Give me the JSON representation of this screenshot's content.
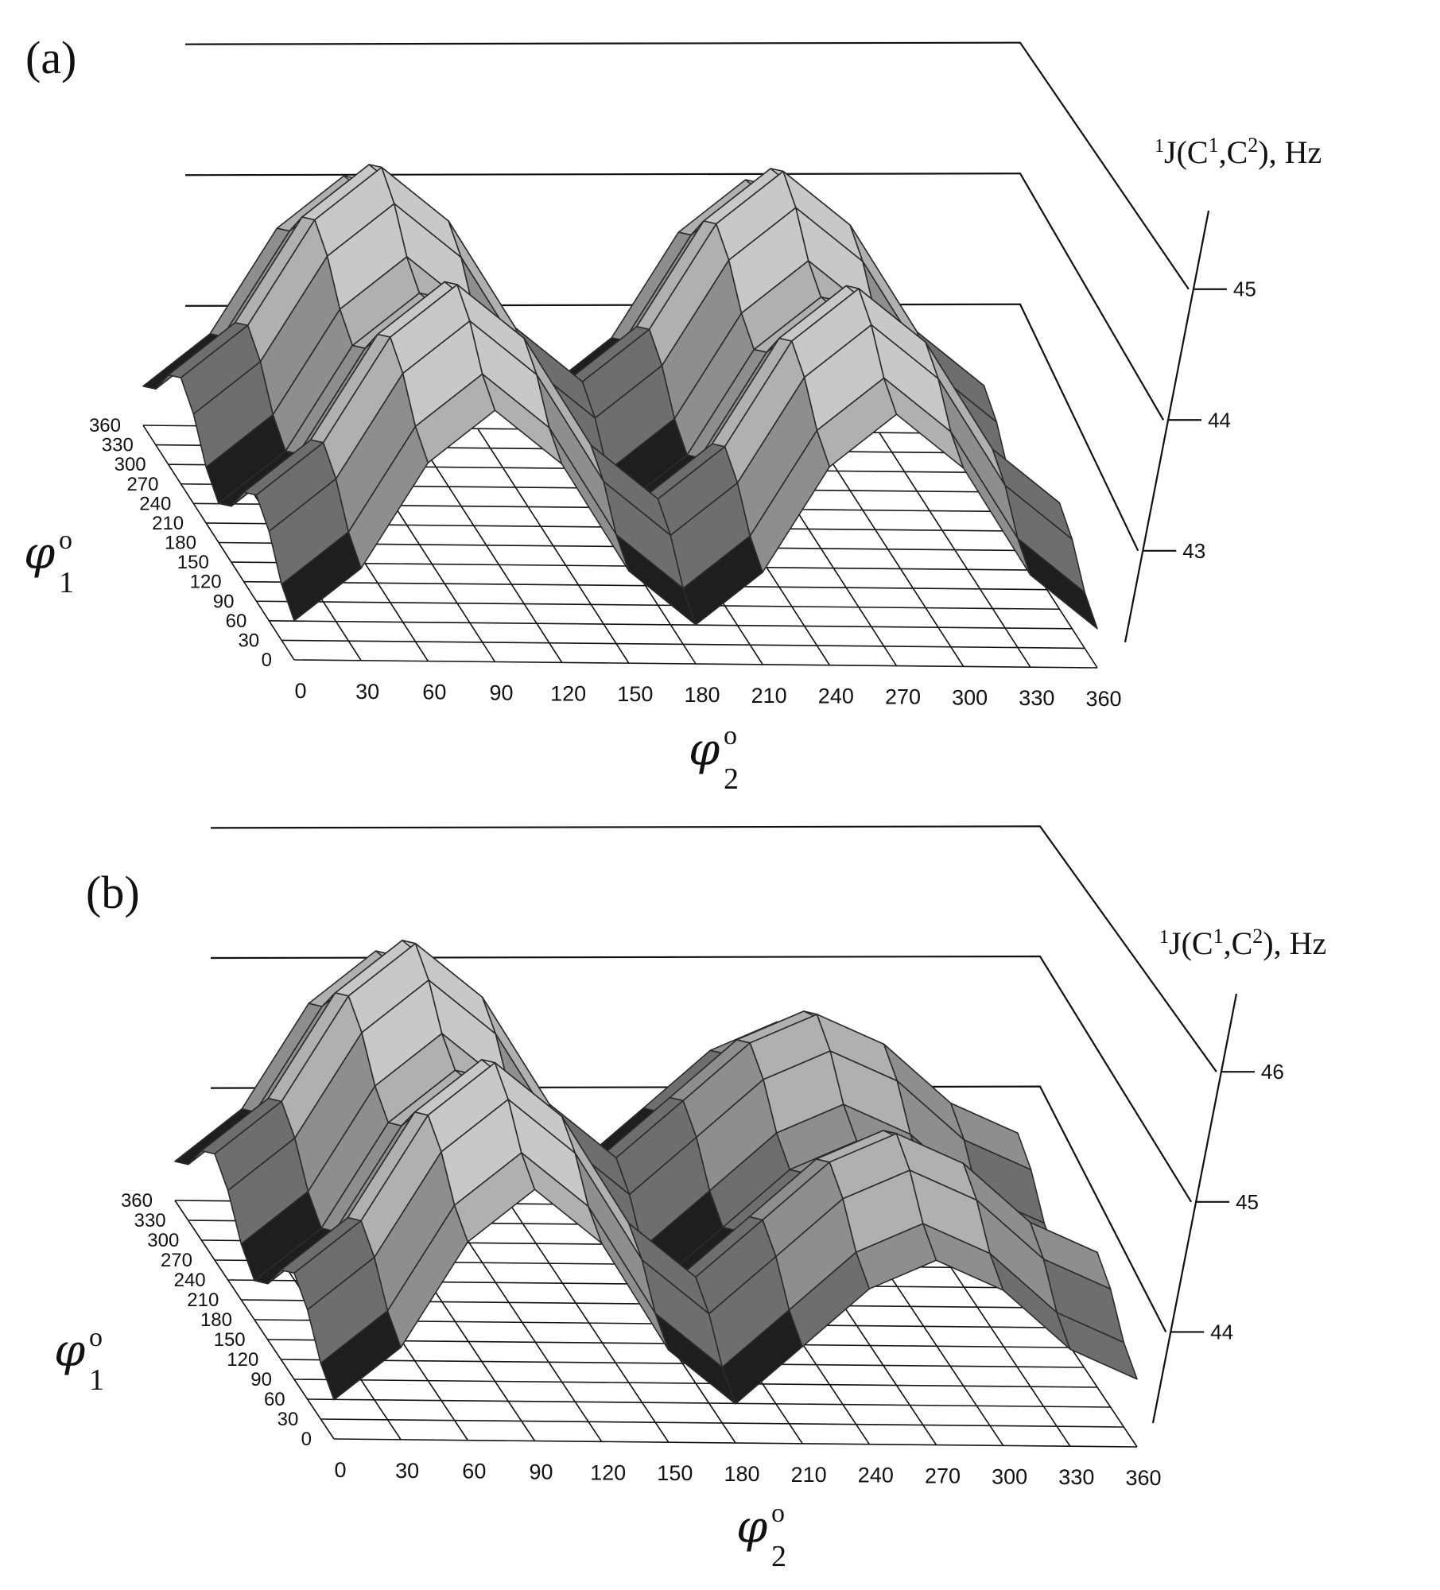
{
  "chart_data": [
    {
      "panel": "(a)",
      "type": "surface",
      "zlabel": "1J(C1,C2), Hz",
      "zlabel_parts": {
        "pre": "1",
        "a": "J(C",
        "b": "1",
        "c": ",C",
        "d": "2",
        "e": "), Hz"
      },
      "xlabel": {
        "symbol": "φ",
        "sub": "2",
        "sup": "o"
      },
      "ylabel": {
        "symbol": "φ",
        "sub": "1",
        "sup": "o"
      },
      "x_ticks": [
        "0",
        "30",
        "60",
        "90",
        "120",
        "150",
        "180",
        "210",
        "240",
        "270",
        "300",
        "330",
        "360"
      ],
      "y_ticks": [
        "0",
        "30",
        "60",
        "90",
        "120",
        "150",
        "180",
        "210",
        "240",
        "270",
        "300",
        "330",
        "360"
      ],
      "z_ticks": [
        "43",
        "44",
        "45"
      ],
      "zlim": [
        42.3,
        45.6
      ],
      "surface_model": {
        "mean": 43.9,
        "amp_phi2": 0.95,
        "amp_phi1": 0.3,
        "period_deg": 180,
        "phi2_peak": 90,
        "phi1_peak": 270
      },
      "colors": {
        "level_1": "#1e1e1e",
        "level_2": "#6e6e6e",
        "level_3": "#8e8e8e",
        "level_4": "#b0b0b0",
        "level_5": "#c8c8c8",
        "level_6": "#3a3a3a"
      }
    },
    {
      "panel": "(b)",
      "type": "surface",
      "zlabel": "1J(C1,C2), Hz",
      "zlabel_parts": {
        "pre": "1",
        "a": "J(C",
        "b": "1",
        "c": ",C",
        "d": "2",
        "e": "), Hz"
      },
      "xlabel": {
        "symbol": "φ",
        "sub": "2",
        "sup": "o"
      },
      "ylabel": {
        "symbol": "φ",
        "sub": "1",
        "sup": "o"
      },
      "x_ticks": [
        "0",
        "30",
        "60",
        "90",
        "120",
        "150",
        "180",
        "210",
        "240",
        "270",
        "300",
        "330",
        "360"
      ],
      "y_ticks": [
        "0",
        "30",
        "60",
        "90",
        "120",
        "150",
        "180",
        "210",
        "240",
        "270",
        "300",
        "330",
        "360"
      ],
      "z_ticks": [
        "44",
        "45",
        "46"
      ],
      "zlim": [
        43.3,
        46.6
      ],
      "surface_model": {
        "mean": 44.9,
        "amp_phi2": 0.95,
        "amp_phi1": 0.3,
        "period_deg": 180,
        "phi2_peak": 90,
        "phi1_peak": 270,
        "second_peak_scale": 0.55
      },
      "colors": {
        "level_1": "#1e1e1e",
        "level_2": "#6e6e6e",
        "level_3": "#8e8e8e",
        "level_4": "#b0b0b0",
        "level_5": "#c8c8c8",
        "level_6": "#3a3a3a"
      }
    }
  ]
}
